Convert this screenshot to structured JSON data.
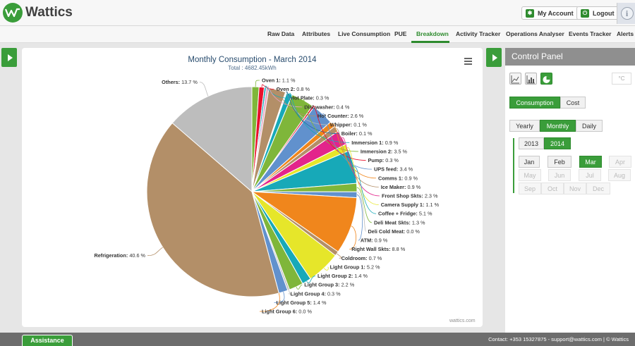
{
  "brand": {
    "name": "Wattics"
  },
  "header": {
    "my_account": "My Account",
    "logout": "Logout"
  },
  "nav": [
    {
      "label": "Raw Data"
    },
    {
      "label": "Attributes"
    },
    {
      "label": "Live Consumption"
    },
    {
      "label": "PUE"
    },
    {
      "label": "Breakdown",
      "active": true
    },
    {
      "label": "Activity Tracker"
    },
    {
      "label": "Operations Analyser"
    },
    {
      "label": "Events Tracker"
    },
    {
      "label": "Alerts"
    }
  ],
  "chart": {
    "credit": "wattics.com"
  },
  "chart_data": {
    "type": "pie",
    "title": "Monthly Consumption - March 2014",
    "subtitle": "Total : 4682.45kWh",
    "slices": [
      {
        "name": "Oven 1",
        "value": 1.1,
        "label": "1.1 %",
        "color": "#7fb63a"
      },
      {
        "name": "Oven 2",
        "value": 0.8,
        "label": "0.8 %",
        "color": "#e8112d"
      },
      {
        "name": "Hot Plate",
        "value": 0.3,
        "label": "0.3 %",
        "color": "#17a9b8"
      },
      {
        "name": "Dishwasher",
        "value": 0.4,
        "label": "0.4 %",
        "color": "#e8a3c2"
      },
      {
        "name": "Hot Counter",
        "value": 2.6,
        "label": "2.6 %",
        "color": "#b38f68"
      },
      {
        "name": "Whipper",
        "value": 0.1,
        "label": "0.1 %",
        "color": "#bdbdbd"
      },
      {
        "name": "Boiler",
        "value": 0.1,
        "label": "0.1 %",
        "color": "#1c6ea4"
      },
      {
        "name": "Immersion 1",
        "value": 0.9,
        "label": "0.9 %",
        "color": "#17a9b8"
      },
      {
        "name": "Immersion 2",
        "value": 3.5,
        "label": "3.5 %",
        "color": "#7fb63a"
      },
      {
        "name": "Pump",
        "value": 0.3,
        "label": "0.3 %",
        "color": "#e8112d"
      },
      {
        "name": "UPS feed",
        "value": 3.4,
        "label": "3.4 %",
        "color": "#6191cd"
      },
      {
        "name": "Comms 1",
        "value": 0.9,
        "label": "0.9 %",
        "color": "#f0861c"
      },
      {
        "name": "Ice Maker",
        "value": 0.9,
        "label": "0.9 %",
        "color": "#b38f68"
      },
      {
        "name": "Front Shop Skts",
        "value": 2.3,
        "label": "2.3 %",
        "color": "#e3248b"
      },
      {
        "name": "Camera Supply 1",
        "value": 1.1,
        "label": "1.1 %",
        "color": "#e6e62a"
      },
      {
        "name": "Coffee + Fridge",
        "value": 5.1,
        "label": "5.1 %",
        "color": "#17a9b8"
      },
      {
        "name": "Deli Meat Skts",
        "value": 1.3,
        "label": "1.3 %",
        "color": "#7fb63a"
      },
      {
        "name": "Deli Cold Meat",
        "value": 0.0,
        "label": "0.0 %",
        "color": "#bdbdbd"
      },
      {
        "name": "ATM",
        "value": 0.9,
        "label": "0.9 %",
        "color": "#6191cd"
      },
      {
        "name": "Right Wall Skts",
        "value": 8.8,
        "label": "8.8 %",
        "color": "#f0861c"
      },
      {
        "name": "Coldroom",
        "value": 0.7,
        "label": "0.7 %",
        "color": "#b38f68"
      },
      {
        "name": "Light Group 1",
        "value": 5.2,
        "label": "5.2 %",
        "color": "#e6e62a"
      },
      {
        "name": "Light Group 2",
        "value": 1.4,
        "label": "1.4 %",
        "color": "#17a9b8"
      },
      {
        "name": "Light Group 3",
        "value": 2.2,
        "label": "2.2 %",
        "color": "#7fb63a"
      },
      {
        "name": "Light Group 4",
        "value": 0.3,
        "label": "0.3 %",
        "color": "#bdbdbd"
      },
      {
        "name": "Light Group 5",
        "value": 1.4,
        "label": "1.4 %",
        "color": "#6191cd"
      },
      {
        "name": "Light Group 6",
        "value": 0.0,
        "label": "0.0 %",
        "color": "#f0861c"
      },
      {
        "name": "Refrigeration",
        "value": 40.6,
        "label": "40.6 %",
        "color": "#b38f68"
      },
      {
        "name": "Others",
        "value": 13.7,
        "label": "13.7 %",
        "color": "#bdbdbd"
      }
    ]
  },
  "control_panel": {
    "title": "Control Panel",
    "icons": [
      "line-chart-icon",
      "bar-chart-icon",
      "pie-chart-icon"
    ],
    "unit": "°C",
    "metric": {
      "options": [
        "Consumption",
        "Cost"
      ],
      "selected": "Consumption"
    },
    "period": {
      "options": [
        "Yearly",
        "Monthly",
        "Daily"
      ],
      "selected": "Monthly"
    },
    "years": {
      "options": [
        "2013",
        "2014"
      ],
      "selected": "2014"
    },
    "months": [
      "Jan",
      "Feb",
      "Mar",
      "Apr",
      "May",
      "Jun",
      "Jul",
      "Aug",
      "Sep",
      "Oct",
      "Nov",
      "Dec"
    ],
    "months_enabled": [
      "Jan",
      "Feb",
      "Mar"
    ],
    "month_selected": "Mar",
    "colors": {
      "accent": "#3a9d3a"
    }
  },
  "footer": {
    "assistance": "Assistance",
    "contact": "Contact: +353 15327875 - support@wattics.com | © Wattics"
  }
}
